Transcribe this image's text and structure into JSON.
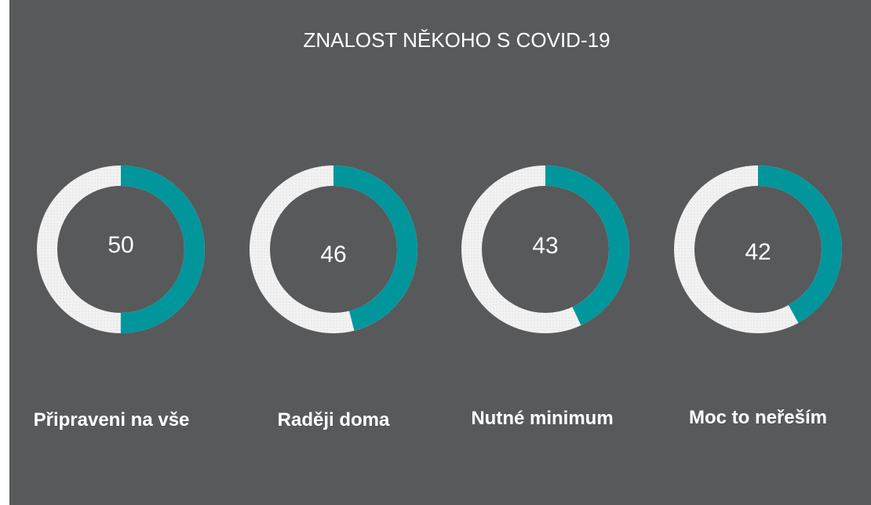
{
  "chart_data": {
    "type": "pie",
    "variant": "donut",
    "title": "ZNALOST NĚKOHO S COVID-19",
    "categories": [
      "Připraveni na vše",
      "Raději doma",
      "Nutné minimum",
      "Moc to neřeším"
    ],
    "values": [
      50,
      46,
      43,
      42
    ],
    "max": 100,
    "colors": {
      "value": "#00969b",
      "remainder": "#f2f2f2",
      "background": "#58595b",
      "text": "#ffffff"
    }
  }
}
